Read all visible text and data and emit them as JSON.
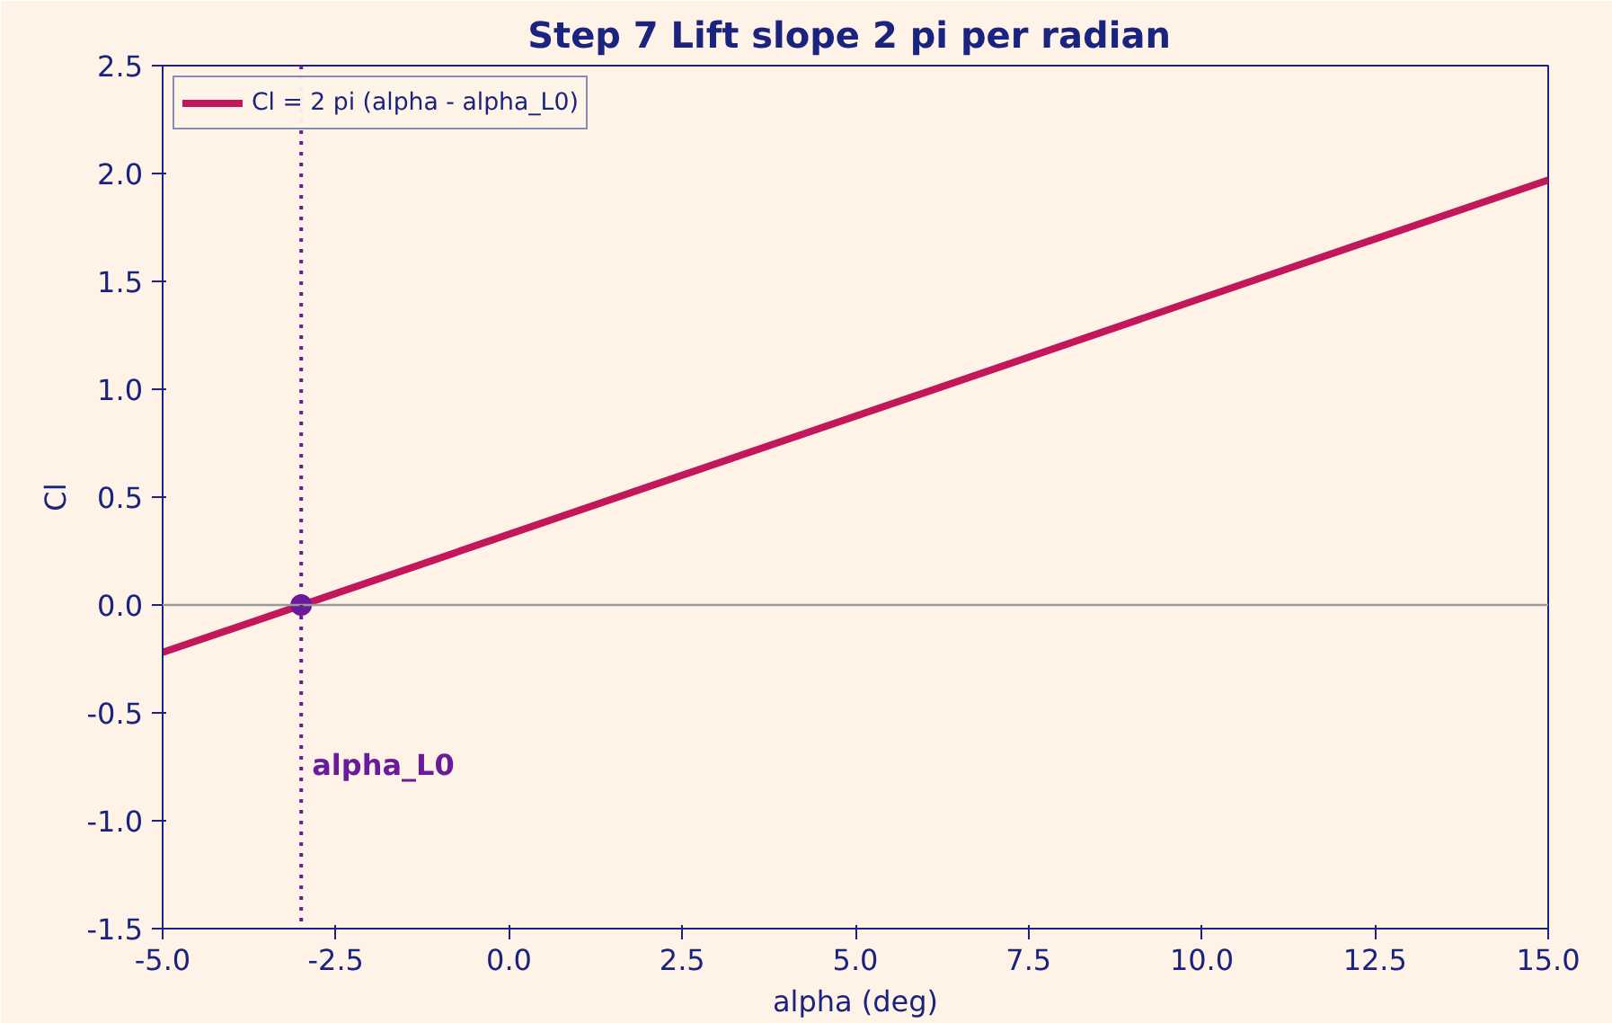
{
  "chart_data": {
    "type": "line",
    "title": "Step 7  Lift slope 2 pi per radian",
    "xlabel": "alpha (deg)",
    "ylabel": "Cl",
    "xlim": [
      -5,
      15
    ],
    "xticks": [
      {
        "value": -5,
        "label": "-5.0"
      },
      {
        "value": -2.5,
        "label": "-2.5"
      },
      {
        "value": 0,
        "label": "0.0"
      },
      {
        "value": 2.5,
        "label": "2.5"
      },
      {
        "value": 5,
        "label": "5.0"
      },
      {
        "value": 7.5,
        "label": "7.5"
      },
      {
        "value": 10,
        "label": "10.0"
      },
      {
        "value": 12.5,
        "label": "12.5"
      },
      {
        "value": 15,
        "label": "15.0"
      }
    ],
    "ylim": [
      -1.5,
      2.5
    ],
    "yticks": [
      {
        "value": -1.5,
        "label": "-1.5"
      },
      {
        "value": -1,
        "label": "-1.0"
      },
      {
        "value": -0.5,
        "label": "-0.5"
      },
      {
        "value": 0,
        "label": "0.0"
      },
      {
        "value": 0.5,
        "label": "0.5"
      },
      {
        "value": 1,
        "label": "1.0"
      },
      {
        "value": 1.5,
        "label": "1.5"
      },
      {
        "value": 2,
        "label": "2.0"
      },
      {
        "value": 2.5,
        "label": "2.5"
      }
    ],
    "series": [
      {
        "name": "Cl = 2 pi (alpha - alpha_L0)",
        "color": "#c2185b",
        "x": [
          -5,
          15
        ],
        "values": [
          -0.22,
          1.97
        ]
      },
      {
        "type": "scatter",
        "marker": "circle",
        "color": "#6a1b9a",
        "x": [
          -3
        ],
        "values": [
          0
        ]
      }
    ],
    "ref_lines": [
      {
        "axis": "y",
        "value": 0,
        "color": "#999999",
        "line_style": "solid"
      },
      {
        "axis": "x",
        "value": -3,
        "color": "#6a1b9a",
        "line_style": "dotted",
        "label": "alpha_L0"
      }
    ],
    "legend": "top left",
    "grid": false,
    "line_style": "solid"
  }
}
